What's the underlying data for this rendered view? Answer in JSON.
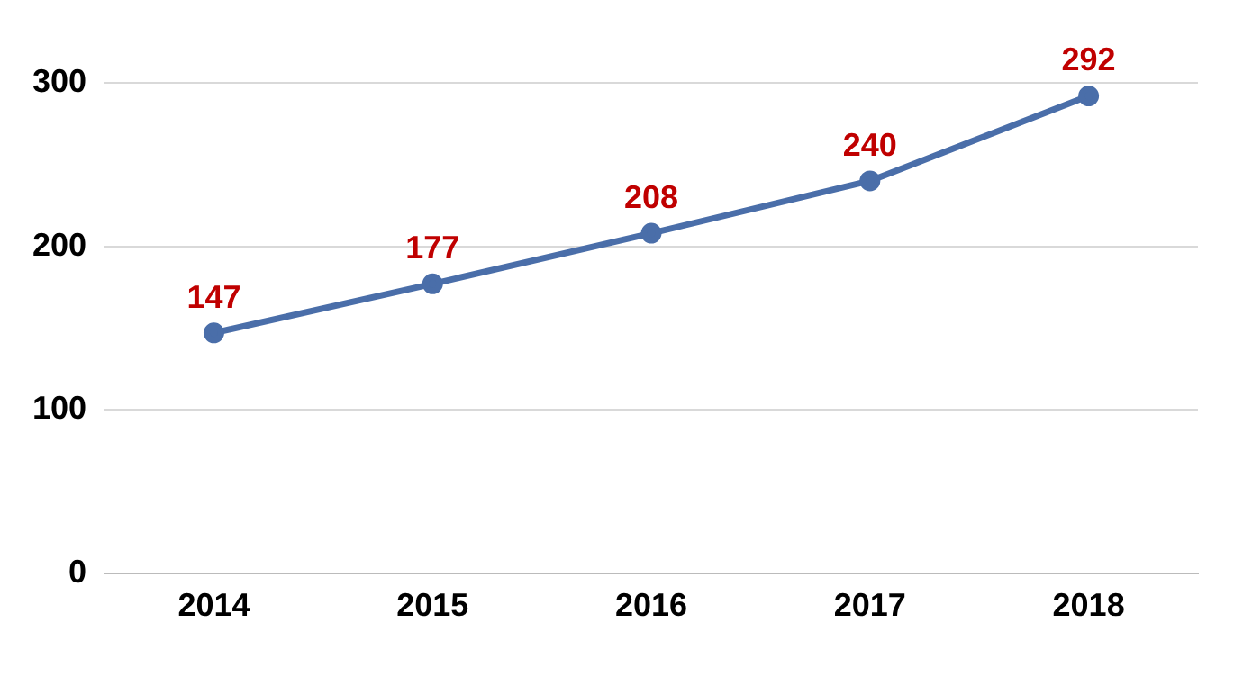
{
  "chart_data": {
    "type": "line",
    "categories": [
      "2014",
      "2015",
      "2016",
      "2017",
      "2018"
    ],
    "series": [
      {
        "color": "#4a6ea9",
        "values": [
          147,
          177,
          208,
          240,
          292
        ]
      }
    ],
    "ylim": [
      0,
      300
    ],
    "yticks": [
      0,
      100,
      200,
      300
    ],
    "grid": "y",
    "marker": "circle",
    "line_style": "solid",
    "data_labels": true,
    "legend": false
  }
}
